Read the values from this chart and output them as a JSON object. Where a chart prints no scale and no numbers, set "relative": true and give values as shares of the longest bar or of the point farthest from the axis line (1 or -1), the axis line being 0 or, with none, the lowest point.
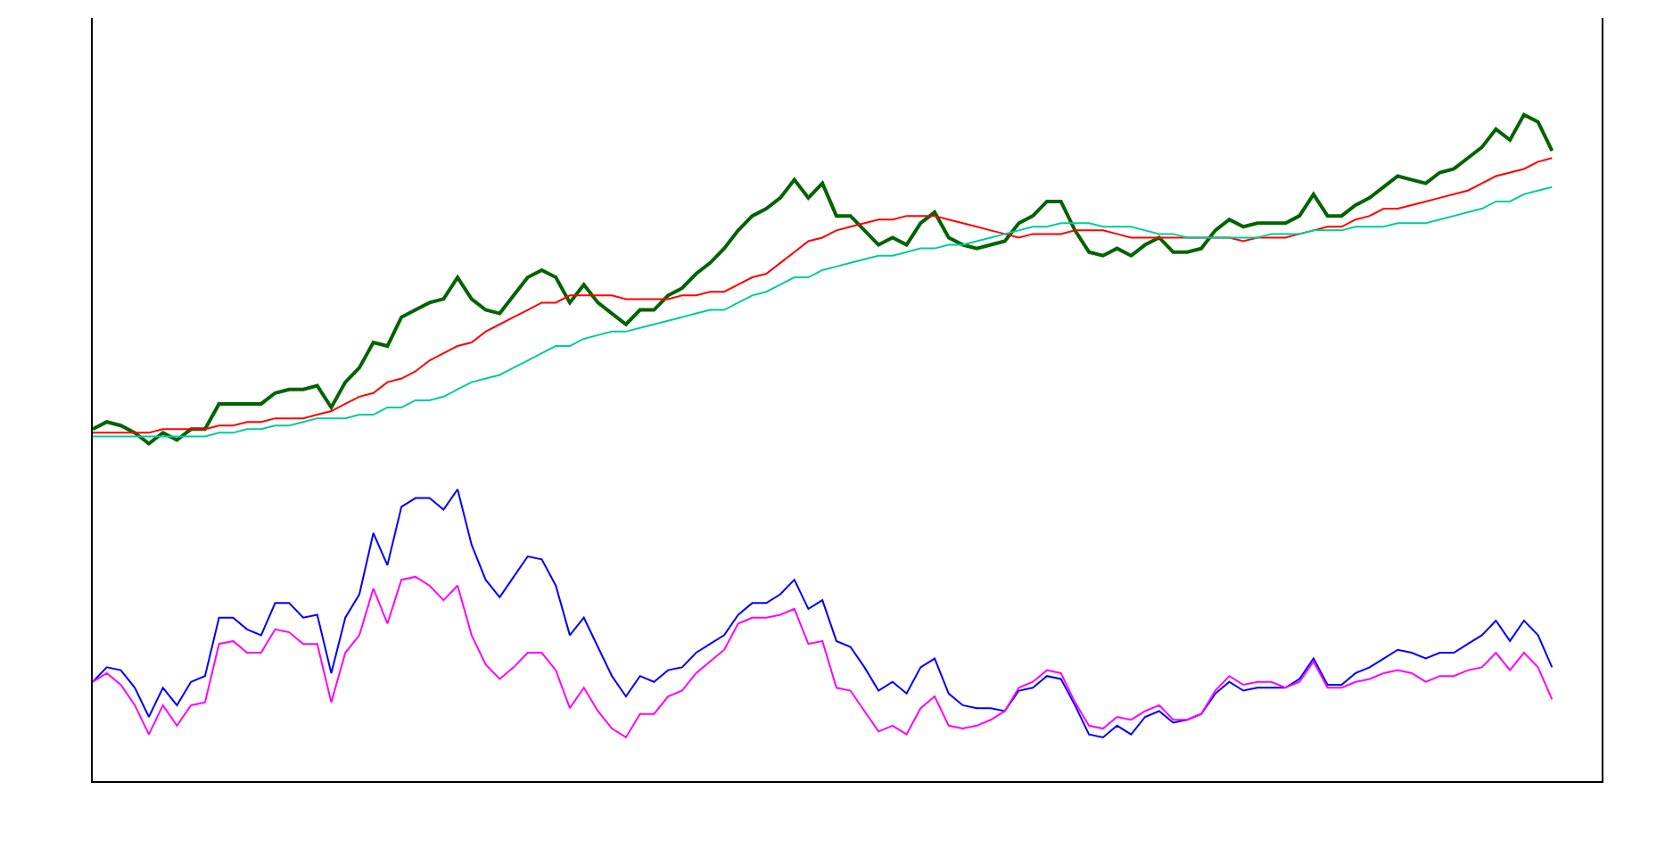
{
  "chart_data": [
    {
      "type": "line",
      "relative": true,
      "categories": [
        null,
        null,
        null,
        null,
        null,
        null,
        null,
        null,
        null,
        null,
        null,
        null,
        null,
        null,
        null,
        null,
        null,
        null,
        null,
        null,
        null,
        null,
        null,
        null,
        null,
        null,
        null,
        null,
        null,
        null,
        null,
        null,
        null,
        null,
        null,
        null,
        null,
        null,
        null,
        null,
        null,
        null,
        null,
        null,
        null,
        null,
        null,
        null,
        null,
        null,
        null,
        null,
        null,
        null,
        null,
        null,
        null,
        null,
        null,
        null,
        null,
        null,
        null,
        null,
        null,
        null,
        null,
        null,
        null,
        null,
        null,
        null,
        null,
        null,
        null,
        null,
        null,
        null,
        null,
        null,
        null,
        null,
        null,
        null,
        null,
        null,
        null,
        null,
        null,
        null,
        null,
        null,
        null,
        null,
        null,
        null,
        null,
        null,
        null,
        null,
        null,
        null,
        null,
        null,
        null
      ],
      "series": [
        {
          "color": "#006400",
          "values": [
            0.13,
            0.15,
            0.14,
            0.12,
            0.09,
            0.12,
            0.1,
            0.13,
            0.13,
            0.2,
            0.2,
            0.2,
            0.2,
            0.23,
            0.24,
            0.24,
            0.25,
            0.19,
            0.26,
            0.3,
            0.37,
            0.36,
            0.44,
            0.46,
            0.48,
            0.49,
            0.55,
            0.49,
            0.46,
            0.45,
            0.5,
            0.55,
            0.57,
            0.55,
            0.48,
            0.53,
            0.48,
            0.45,
            0.42,
            0.46,
            0.46,
            0.5,
            0.52,
            0.56,
            0.59,
            0.63,
            0.68,
            0.72,
            0.74,
            0.77,
            0.82,
            0.77,
            0.81,
            0.72,
            0.72,
            0.68,
            0.64,
            0.66,
            0.64,
            0.7,
            0.73,
            0.66,
            0.64,
            0.63,
            0.64,
            0.65,
            0.7,
            0.72,
            0.76,
            0.76,
            0.68,
            0.62,
            0.61,
            0.63,
            0.61,
            0.64,
            0.66,
            0.62,
            0.62,
            0.63,
            0.68,
            0.71,
            0.69,
            0.7,
            0.7,
            0.7,
            0.72,
            0.78,
            0.72,
            0.72,
            0.75,
            0.77,
            0.8,
            0.83,
            0.82,
            0.81,
            0.84,
            0.85,
            0.88,
            0.91,
            0.96,
            0.93,
            1,
            0.98,
            0.9
          ]
        },
        {
          "color": "#ff0000",
          "values": [
            0.12,
            0.12,
            0.12,
            0.12,
            0.12,
            0.13,
            0.13,
            0.13,
            0.13,
            0.14,
            0.14,
            0.15,
            0.15,
            0.16,
            0.16,
            0.16,
            0.17,
            0.18,
            0.2,
            0.22,
            0.23,
            0.26,
            0.27,
            0.29,
            0.32,
            0.34,
            0.36,
            0.37,
            0.4,
            0.42,
            0.44,
            0.46,
            0.48,
            0.48,
            0.5,
            0.5,
            0.5,
            0.5,
            0.49,
            0.49,
            0.49,
            0.49,
            0.5,
            0.5,
            0.51,
            0.51,
            0.53,
            0.55,
            0.56,
            0.59,
            0.62,
            0.65,
            0.66,
            0.68,
            0.69,
            0.7,
            0.71,
            0.71,
            0.72,
            0.72,
            0.72,
            0.71,
            0.7,
            0.69,
            0.68,
            0.67,
            0.66,
            0.67,
            0.67,
            0.67,
            0.68,
            0.68,
            0.68,
            0.67,
            0.66,
            0.66,
            0.66,
            0.66,
            0.66,
            0.66,
            0.66,
            0.66,
            0.65,
            0.66,
            0.66,
            0.66,
            0.67,
            0.68,
            0.69,
            0.69,
            0.71,
            0.72,
            0.74,
            0.74,
            0.75,
            0.76,
            0.77,
            0.78,
            0.79,
            0.81,
            0.83,
            0.84,
            0.85,
            0.87,
            0.88
          ]
        },
        {
          "color": "#00cc99",
          "values": [
            0.11,
            0.11,
            0.11,
            0.11,
            0.11,
            0.11,
            0.11,
            0.11,
            0.11,
            0.12,
            0.12,
            0.13,
            0.13,
            0.14,
            0.14,
            0.15,
            0.16,
            0.16,
            0.16,
            0.17,
            0.17,
            0.19,
            0.19,
            0.21,
            0.21,
            0.22,
            0.24,
            0.26,
            0.27,
            0.28,
            0.3,
            0.32,
            0.34,
            0.36,
            0.36,
            0.38,
            0.39,
            0.4,
            0.4,
            0.41,
            0.42,
            0.43,
            0.44,
            0.45,
            0.46,
            0.46,
            0.48,
            0.5,
            0.51,
            0.53,
            0.55,
            0.55,
            0.57,
            0.58,
            0.59,
            0.6,
            0.61,
            0.61,
            0.62,
            0.63,
            0.63,
            0.64,
            0.64,
            0.65,
            0.66,
            0.67,
            0.68,
            0.69,
            0.69,
            0.7,
            0.7,
            0.7,
            0.69,
            0.69,
            0.69,
            0.68,
            0.67,
            0.67,
            0.66,
            0.66,
            0.66,
            0.66,
            0.66,
            0.66,
            0.67,
            0.67,
            0.67,
            0.68,
            0.68,
            0.68,
            0.69,
            0.69,
            0.69,
            0.7,
            0.7,
            0.7,
            0.71,
            0.72,
            0.73,
            0.74,
            0.76,
            0.76,
            0.78,
            0.79,
            0.8
          ]
        }
      ]
    },
    {
      "type": "line",
      "relative": true,
      "categories": [
        null,
        null,
        null,
        null,
        null,
        null,
        null,
        null,
        null,
        null,
        null,
        null,
        null,
        null,
        null,
        null,
        null,
        null,
        null,
        null,
        null,
        null,
        null,
        null,
        null,
        null,
        null,
        null,
        null,
        null,
        null,
        null,
        null,
        null,
        null,
        null,
        null,
        null,
        null,
        null,
        null,
        null,
        null,
        null,
        null,
        null,
        null,
        null,
        null,
        null,
        null,
        null,
        null,
        null,
        null,
        null,
        null,
        null,
        null,
        null,
        null,
        null,
        null,
        null,
        null,
        null,
        null,
        null,
        null,
        null,
        null,
        null,
        null,
        null,
        null,
        null,
        null,
        null,
        null,
        null,
        null,
        null,
        null,
        null,
        null,
        null,
        null,
        null,
        null,
        null,
        null,
        null,
        null,
        null,
        null,
        null,
        null,
        null,
        null,
        null,
        null,
        null,
        null,
        null,
        null
      ],
      "series": [
        {
          "color": "#0000ff",
          "values": [
            0.34,
            0.39,
            0.38,
            0.32,
            0.22,
            0.32,
            0.26,
            0.34,
            0.36,
            0.56,
            0.56,
            0.52,
            0.5,
            0.61,
            0.61,
            0.56,
            0.57,
            0.37,
            0.56,
            0.64,
            0.85,
            0.74,
            0.94,
            0.97,
            0.97,
            0.93,
            1,
            0.81,
            0.69,
            0.63,
            0.7,
            0.77,
            0.76,
            0.67,
            0.5,
            0.56,
            0.46,
            0.36,
            0.29,
            0.36,
            0.34,
            0.38,
            0.39,
            0.44,
            0.47,
            0.5,
            0.57,
            0.61,
            0.61,
            0.64,
            0.69,
            0.59,
            0.62,
            0.48,
            0.46,
            0.39,
            0.31,
            0.34,
            0.3,
            0.39,
            0.42,
            0.3,
            0.26,
            0.25,
            0.25,
            0.24,
            0.31,
            0.32,
            0.36,
            0.35,
            0.26,
            0.16,
            0.15,
            0.19,
            0.16,
            0.22,
            0.24,
            0.2,
            0.21,
            0.23,
            0.3,
            0.34,
            0.31,
            0.32,
            0.32,
            0.32,
            0.35,
            0.42,
            0.33,
            0.33,
            0.37,
            0.39,
            0.42,
            0.45,
            0.44,
            0.42,
            0.44,
            0.44,
            0.47,
            0.5,
            0.55,
            0.48,
            0.55,
            0.5,
            0.39
          ]
        },
        {
          "color": "#ff00ff",
          "values": [
            0.34,
            0.37,
            0.33,
            0.26,
            0.16,
            0.26,
            0.19,
            0.26,
            0.27,
            0.47,
            0.48,
            0.44,
            0.44,
            0.52,
            0.51,
            0.47,
            0.47,
            0.27,
            0.44,
            0.5,
            0.66,
            0.54,
            0.69,
            0.7,
            0.67,
            0.62,
            0.67,
            0.5,
            0.4,
            0.35,
            0.39,
            0.44,
            0.44,
            0.38,
            0.25,
            0.32,
            0.24,
            0.18,
            0.15,
            0.23,
            0.23,
            0.29,
            0.31,
            0.37,
            0.41,
            0.45,
            0.54,
            0.56,
            0.56,
            0.57,
            0.59,
            0.47,
            0.48,
            0.32,
            0.31,
            0.24,
            0.17,
            0.19,
            0.16,
            0.25,
            0.29,
            0.19,
            0.18,
            0.19,
            0.21,
            0.24,
            0.32,
            0.34,
            0.38,
            0.37,
            0.27,
            0.19,
            0.18,
            0.22,
            0.21,
            0.24,
            0.26,
            0.21,
            0.21,
            0.23,
            0.31,
            0.36,
            0.33,
            0.34,
            0.34,
            0.32,
            0.34,
            0.41,
            0.32,
            0.32,
            0.34,
            0.35,
            0.37,
            0.38,
            0.37,
            0.34,
            0.36,
            0.36,
            0.38,
            0.39,
            0.44,
            0.38,
            0.44,
            0.39,
            0.28
          ]
        }
      ]
    }
  ]
}
